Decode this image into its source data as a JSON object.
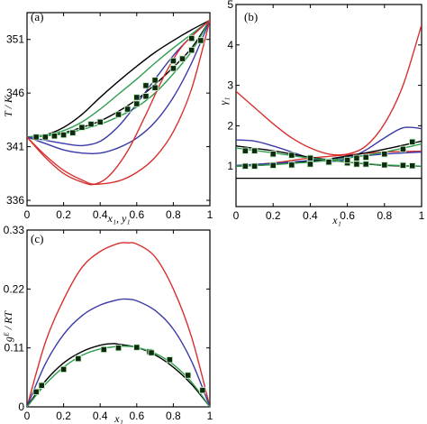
{
  "chart_data": [
    {
      "type": "line",
      "panel_label": "(a)",
      "xlabel": "x₁, y₁",
      "ylabel": "T / K",
      "xlim": [
        0,
        1
      ],
      "ylim": [
        335.5,
        353.5
      ],
      "xticks": [
        0,
        0.2,
        0.4,
        0.6,
        0.8,
        1
      ],
      "xtick_labels": [
        "0",
        "0.2",
        "0.4",
        "0.6",
        "0.8",
        "1"
      ],
      "yticks": [
        336,
        341,
        346,
        351
      ],
      "ytick_labels": [
        "336",
        "341",
        "346",
        "351"
      ],
      "curve_color_names": [
        "black",
        "green",
        "blue",
        "red"
      ],
      "series": [
        {
          "color": "#000000",
          "x": [
            0,
            0.1,
            0.2,
            0.3,
            0.4,
            0.5,
            0.6,
            0.7,
            0.8,
            0.9,
            1
          ],
          "y": [
            341.9,
            342.0,
            342.3,
            342.8,
            343.4,
            344.3,
            345.4,
            346.8,
            348.4,
            350.2,
            352.8
          ]
        },
        {
          "color": "#000000",
          "x": [
            0,
            0.1,
            0.2,
            0.3,
            0.4,
            0.5,
            0.6,
            0.7,
            0.8,
            0.9,
            1
          ],
          "y": [
            341.9,
            342.1,
            342.8,
            344.0,
            345.6,
            347.1,
            348.5,
            349.8,
            350.9,
            351.9,
            352.8
          ]
        },
        {
          "color": "#2e9e4e",
          "x": [
            0,
            0.1,
            0.2,
            0.3,
            0.4,
            0.5,
            0.6,
            0.7,
            0.8,
            0.9,
            1
          ],
          "y": [
            341.9,
            342.0,
            342.2,
            342.6,
            343.1,
            343.8,
            344.7,
            346.0,
            347.8,
            349.9,
            352.8
          ]
        },
        {
          "color": "#2e9e4e",
          "x": [
            0,
            0.1,
            0.2,
            0.3,
            0.4,
            0.5,
            0.6,
            0.7,
            0.8,
            0.9,
            1
          ],
          "y": [
            341.9,
            342.1,
            342.5,
            343.3,
            344.5,
            345.9,
            347.3,
            348.8,
            350.2,
            351.5,
            352.8
          ]
        },
        {
          "color": "#3a3aa8",
          "x": [
            0,
            0.1,
            0.2,
            0.3,
            0.4,
            0.5,
            0.6,
            0.7,
            0.8,
            0.9,
            1
          ],
          "y": [
            341.9,
            341.3,
            340.7,
            340.4,
            340.4,
            340.9,
            341.8,
            343.3,
            345.6,
            348.8,
            352.8
          ]
        },
        {
          "color": "#3a3aa8",
          "x": [
            0,
            0.1,
            0.2,
            0.3,
            0.4,
            0.5,
            0.6,
            0.7,
            0.8,
            0.9,
            1
          ],
          "y": [
            341.9,
            341.6,
            341.3,
            341.1,
            341.5,
            342.9,
            345.0,
            347.3,
            349.5,
            351.3,
            352.8
          ]
        },
        {
          "color": "#d83030",
          "x": [
            0,
            0.1,
            0.2,
            0.3,
            0.37,
            0.5,
            0.6,
            0.7,
            0.8,
            0.9,
            1
          ],
          "y": [
            341.9,
            340.2,
            338.8,
            337.9,
            337.5,
            337.8,
            338.6,
            340.0,
            342.4,
            346.4,
            352.8
          ]
        },
        {
          "color": "#d83030",
          "x": [
            0,
            0.1,
            0.2,
            0.3,
            0.37,
            0.45,
            0.55,
            0.65,
            0.75,
            0.85,
            1
          ],
          "y": [
            341.9,
            340.0,
            338.5,
            337.7,
            337.5,
            338.3,
            340.6,
            344.0,
            347.6,
            350.4,
            352.8
          ]
        }
      ],
      "markers": {
        "x": [
          0.05,
          0.1,
          0.2,
          0.25,
          0.3,
          0.35,
          0.4,
          0.5,
          0.55,
          0.6,
          0.65,
          0.7,
          0.8,
          0.85,
          0.9,
          0.95,
          0.15,
          0.6,
          0.65,
          0.7,
          0.8,
          0.9
        ],
        "y": [
          341.9,
          341.9,
          342.1,
          342.3,
          342.8,
          343.1,
          343.3,
          344.0,
          344.5,
          345.0,
          345.7,
          346.5,
          348.3,
          349.2,
          350.0,
          350.9,
          342.0,
          345.6,
          346.7,
          347.2,
          349.0,
          351.1
        ]
      }
    },
    {
      "type": "line",
      "panel_label": "(b)",
      "xlabel": "x₁",
      "ylabel": "γ₁",
      "xlim": [
        0,
        1
      ],
      "ylim": [
        0,
        5
      ],
      "xticks": [
        0,
        0.2,
        0.4,
        0.6,
        0.8,
        1
      ],
      "xtick_labels": [
        "0",
        "0.2",
        "0.4",
        "0.6",
        "0.8",
        "1"
      ],
      "yticks": [
        1,
        2,
        3,
        4,
        5
      ],
      "ytick_labels": [
        "1",
        "2",
        "3",
        "4",
        "5"
      ],
      "reference_line_y": 0.7,
      "series": [
        {
          "color": "#d83030",
          "x": [
            0,
            0.1,
            0.2,
            0.3,
            0.4,
            0.5,
            0.6,
            0.7,
            0.8,
            0.9,
            1
          ],
          "y": [
            2.85,
            2.45,
            2.05,
            1.7,
            1.45,
            1.3,
            1.3,
            1.5,
            2.05,
            3.0,
            4.5
          ]
        },
        {
          "color": "#d83030",
          "x": [
            0,
            0.2,
            0.4,
            0.6,
            0.8,
            1
          ],
          "y": [
            1.0,
            1.08,
            1.2,
            1.28,
            1.35,
            1.37
          ]
        },
        {
          "color": "#3a3aa8",
          "x": [
            0,
            0.1,
            0.2,
            0.3,
            0.4,
            0.5,
            0.6,
            0.7,
            0.8,
            0.9,
            1
          ],
          "y": [
            1.65,
            1.62,
            1.5,
            1.35,
            1.2,
            1.12,
            1.18,
            1.4,
            1.7,
            1.95,
            1.93
          ]
        },
        {
          "color": "#3a3aa8",
          "x": [
            0,
            0.2,
            0.4,
            0.6,
            0.8,
            1
          ],
          "y": [
            1.02,
            1.07,
            1.14,
            1.22,
            1.3,
            1.35
          ]
        },
        {
          "color": "#000000",
          "x": [
            0,
            0.2,
            0.4,
            0.6,
            0.8,
            1
          ],
          "y": [
            1.5,
            1.38,
            1.22,
            1.1,
            1.02,
            1.0
          ]
        },
        {
          "color": "#000000",
          "x": [
            0,
            0.2,
            0.4,
            0.6,
            0.8,
            1
          ],
          "y": [
            1.0,
            1.04,
            1.12,
            1.25,
            1.42,
            1.62
          ]
        },
        {
          "color": "#2e9e4e",
          "x": [
            0,
            0.2,
            0.4,
            0.6,
            0.8,
            1
          ],
          "y": [
            1.45,
            1.33,
            1.2,
            1.1,
            1.03,
            1.0
          ]
        },
        {
          "color": "#2e9e4e",
          "x": [
            0,
            0.2,
            0.4,
            0.6,
            0.8,
            1
          ],
          "y": [
            1.0,
            1.04,
            1.1,
            1.2,
            1.35,
            1.55
          ]
        }
      ],
      "markers": {
        "x": [
          0.05,
          0.1,
          0.2,
          0.3,
          0.4,
          0.5,
          0.6,
          0.65,
          0.7,
          0.8,
          0.9,
          0.95,
          0.05,
          0.1,
          0.2,
          0.3,
          0.4,
          0.5,
          0.6,
          0.65,
          0.7,
          0.8,
          0.9,
          0.95
        ],
        "y": [
          1.38,
          1.38,
          1.3,
          1.27,
          1.2,
          1.12,
          1.08,
          1.05,
          1.05,
          1.03,
          1.02,
          1.01,
          1.0,
          1.0,
          1.02,
          1.03,
          1.05,
          1.1,
          1.15,
          1.2,
          1.22,
          1.3,
          1.42,
          1.6
        ]
      }
    },
    {
      "type": "line",
      "panel_label": "(c)",
      "xlabel": "x₁",
      "ylabel": "gᴱ / RT",
      "xlim": [
        0,
        1
      ],
      "ylim": [
        0,
        0.33
      ],
      "xticks": [
        0,
        0.2,
        0.4,
        0.6,
        0.8,
        1
      ],
      "xtick_labels": [
        "0",
        "0.2",
        "0.4",
        "0.6",
        "0.8",
        "1"
      ],
      "yticks": [
        0,
        0.11,
        0.22,
        0.33
      ],
      "ytick_labels": [
        "0",
        "0.11",
        "0.22",
        "0.33"
      ],
      "series": [
        {
          "color": "#d83030",
          "x": [
            0,
            0.1,
            0.2,
            0.3,
            0.4,
            0.5,
            0.55,
            0.6,
            0.7,
            0.8,
            0.9,
            1
          ],
          "y": [
            0,
            0.12,
            0.2,
            0.26,
            0.29,
            0.305,
            0.306,
            0.304,
            0.28,
            0.22,
            0.13,
            0
          ]
        },
        {
          "color": "#3a3aa8",
          "x": [
            0,
            0.1,
            0.2,
            0.3,
            0.4,
            0.5,
            0.55,
            0.6,
            0.7,
            0.8,
            0.9,
            1
          ],
          "y": [
            0,
            0.08,
            0.135,
            0.17,
            0.19,
            0.2,
            0.201,
            0.198,
            0.18,
            0.145,
            0.085,
            0
          ]
        },
        {
          "color": "#000000",
          "x": [
            0,
            0.1,
            0.2,
            0.3,
            0.4,
            0.47,
            0.5,
            0.6,
            0.7,
            0.8,
            0.9,
            1
          ],
          "y": [
            0,
            0.048,
            0.082,
            0.103,
            0.115,
            0.118,
            0.117,
            0.111,
            0.097,
            0.074,
            0.042,
            0
          ]
        },
        {
          "color": "#2e9e4e",
          "x": [
            0,
            0.1,
            0.2,
            0.3,
            0.4,
            0.5,
            0.55,
            0.6,
            0.7,
            0.8,
            0.9,
            1
          ],
          "y": [
            0,
            0.042,
            0.074,
            0.096,
            0.108,
            0.113,
            0.113,
            0.111,
            0.1,
            0.079,
            0.046,
            0
          ]
        }
      ],
      "markers": {
        "x": [
          0.05,
          0.08,
          0.2,
          0.28,
          0.42,
          0.5,
          0.6,
          0.67,
          0.68,
          0.78,
          0.88,
          0.96
        ],
        "y": [
          0.028,
          0.04,
          0.07,
          0.09,
          0.107,
          0.11,
          0.111,
          0.103,
          0.101,
          0.088,
          0.059,
          0.031
        ]
      }
    }
  ]
}
